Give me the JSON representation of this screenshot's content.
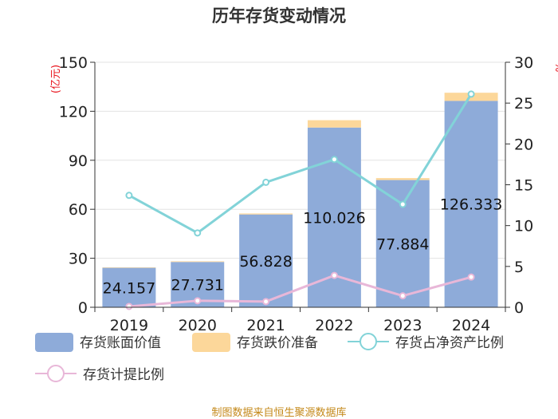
{
  "chart_data": {
    "type": "bar",
    "title": "历年存货变动情况",
    "categories": [
      "2019",
      "2020",
      "2021",
      "2022",
      "2023",
      "2024"
    ],
    "series": [
      {
        "name": "存货账面价值",
        "type": "bar",
        "axis": "left",
        "color": "#8eabd9",
        "values": [
          24.157,
          27.731,
          56.828,
          110.026,
          77.884,
          126.333
        ]
      },
      {
        "name": "存货跌价准备",
        "type": "bar",
        "axis": "left",
        "color": "#fcd79a",
        "values": [
          0.3,
          0.4,
          0.6,
          4.5,
          1.2,
          5.0
        ]
      },
      {
        "name": "存货占净资产比例",
        "type": "line",
        "axis": "right",
        "color": "#82d3d8",
        "values": [
          13.7,
          9.1,
          15.3,
          18.1,
          12.6,
          26.1
        ]
      },
      {
        "name": "存货计提比例",
        "type": "line",
        "axis": "right",
        "color": "#e8b7d8",
        "values": [
          0.1,
          0.8,
          0.7,
          3.9,
          1.4,
          3.7
        ]
      }
    ],
    "data_labels": [
      "24.157",
      "27.731",
      "56.828",
      "110.026",
      "77.884",
      "126.333"
    ],
    "y_left": {
      "label": "(亿元)",
      "ylim": [
        0,
        150
      ],
      "ticks": [
        "0",
        "30",
        "60",
        "90",
        "120",
        "150"
      ]
    },
    "y_right": {
      "label": "%",
      "ylim": [
        0,
        30
      ],
      "ticks": [
        "0",
        "5",
        "10",
        "15",
        "20",
        "25",
        "30"
      ]
    },
    "grid": true,
    "legend_position": "bottom"
  },
  "footer": {
    "source": "制图数据来自恒生聚源数据库"
  }
}
